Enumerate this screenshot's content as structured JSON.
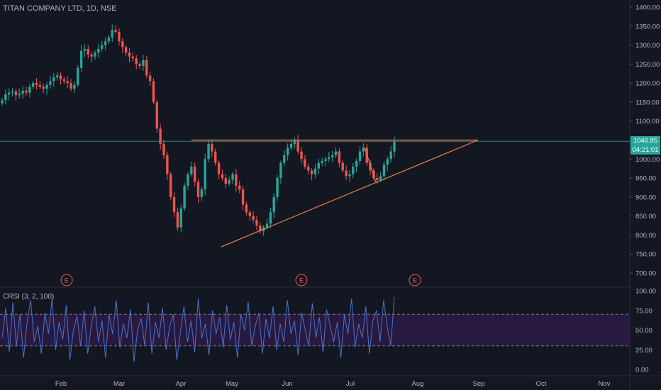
{
  "header": {
    "title": "TITAN COMPANY LTD, 1D, NSE"
  },
  "price_tag": {
    "value": "1046.85",
    "countdown": "04:21:01",
    "color": "#26a69a",
    "countdown_bg": "#26a69a"
  },
  "indicator": {
    "title": "CRSI (3, 2, 100)"
  },
  "colors": {
    "up": "#26a69a",
    "down": "#ef5350",
    "trendline": "#f57f3f",
    "crsi_line": "#4a74c9",
    "crsi_band": "#2b1a45",
    "hline": "#3a7f7a"
  },
  "earnings_marker": {
    "label": "E"
  },
  "chart_data": [
    {
      "type": "candlestick",
      "title": "TITAN COMPANY LTD, 1D, NSE",
      "ylim": [
        680,
        1420
      ],
      "y_ticks": [
        "1400.00",
        "1350.00",
        "1300.00",
        "1250.00",
        "1200.00",
        "1150.00",
        "1100.00",
        "1050.00",
        "1000.00",
        "950.00",
        "900.00",
        "850.00",
        "800.00",
        "750.00",
        "700.00"
      ],
      "x_ticks": [
        "Feb",
        "Mar",
        "Apr",
        "May",
        "Jun",
        "Jul",
        "Aug",
        "Sep",
        "Oct",
        "Nov"
      ],
      "current_price": 1046.85,
      "close_series": [
        1155,
        1170,
        1175,
        1178,
        1168,
        1172,
        1180,
        1175,
        1190,
        1200,
        1195,
        1190,
        1185,
        1195,
        1205,
        1215,
        1220,
        1210,
        1205,
        1200,
        1185,
        1195,
        1240,
        1285,
        1290,
        1275,
        1270,
        1280,
        1290,
        1300,
        1310,
        1320,
        1340,
        1335,
        1310,
        1295,
        1280,
        1270,
        1265,
        1250,
        1245,
        1260,
        1220,
        1205,
        1150,
        1080,
        1040,
        1010,
        960,
        900,
        860,
        820,
        870,
        930,
        960,
        980,
        940,
        900,
        920,
        1000,
        1040,
        1020,
        990,
        960,
        950,
        935,
        945,
        960,
        930,
        920,
        880,
        860,
        850,
        840,
        825,
        810,
        820,
        830,
        860,
        900,
        950,
        990,
        1010,
        1030,
        1040,
        1050,
        1020,
        1000,
        980,
        970,
        960,
        975,
        990,
        995,
        1000,
        1005,
        1010,
        1020,
        990,
        970,
        955,
        960,
        980,
        995,
        1020,
        1030,
        990,
        970,
        950,
        945,
        955,
        985,
        1000,
        1020,
        1047
      ],
      "earnings_markers": [
        "Feb",
        "Jun",
        "Jul"
      ]
    },
    {
      "type": "line",
      "title": "CRSI (3, 2, 100)",
      "ylim": [
        0,
        100
      ],
      "y_ticks": [
        "100.00",
        "75.00",
        "50.00",
        "25.00",
        "0.00"
      ],
      "band": [
        30,
        70
      ],
      "values": [
        40,
        78,
        22,
        85,
        30,
        70,
        15,
        60,
        88,
        35,
        55,
        20,
        72,
        45,
        90,
        25,
        60,
        38,
        82,
        12,
        50,
        68,
        30,
        75,
        20,
        55,
        80,
        35,
        62,
        15,
        70,
        45,
        88,
        28,
        58,
        40,
        76,
        10,
        50,
        65,
        30,
        85,
        20,
        60,
        40,
        78,
        25,
        55,
        70,
        12,
        48,
        80,
        35,
        62,
        22,
        90,
        40,
        58,
        18,
        75,
        45,
        66,
        28,
        82,
        38,
        60,
        15,
        70,
        50,
        86,
        30,
        55,
        72,
        20,
        64,
        40,
        80,
        25,
        58,
        35,
        88,
        45,
        62,
        18,
        72,
        50,
        30,
        84,
        40,
        66,
        22,
        76,
        55,
        35,
        60,
        15,
        70,
        45,
        90,
        28,
        58,
        40,
        80,
        20,
        62,
        75,
        35,
        88,
        55,
        30,
        92
      ]
    }
  ]
}
